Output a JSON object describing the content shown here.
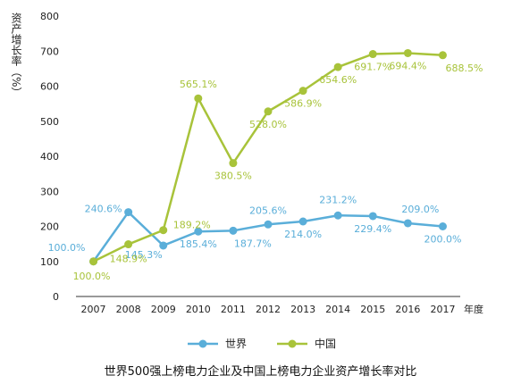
{
  "chart_data": {
    "type": "line",
    "title": "世界500强上榜电力企业及中国上榜电力企业资产增长率对比",
    "ylabel": "资产增长率（%）",
    "xlabel": "年度",
    "ylim": [
      0,
      800
    ],
    "yticks": [
      0,
      100,
      200,
      300,
      400,
      500,
      600,
      700,
      800
    ],
    "grid": false,
    "legend_position": "bottom-center",
    "categories": [
      "2007",
      "2008",
      "2009",
      "2010",
      "2011",
      "2012",
      "2013",
      "2014",
      "2015",
      "2016",
      "2017"
    ],
    "series": [
      {
        "name": "世界",
        "color": "#5aaed9",
        "values": [
          100.0,
          240.6,
          145.3,
          185.4,
          187.7,
          205.6,
          214.0,
          231.2,
          229.4,
          209.0,
          200.0
        ],
        "labels": [
          "100.0%",
          "240.6%",
          "145.3%",
          "185.4%",
          "187.7%",
          "205.6%",
          "214.0%",
          "231.2%",
          "229.4%",
          "209.0%",
          "200.0%"
        ]
      },
      {
        "name": "中国",
        "color": "#a8c33a",
        "values": [
          100.0,
          148.9,
          189.2,
          565.1,
          380.5,
          528.0,
          586.9,
          654.6,
          691.7,
          694.4,
          688.5
        ],
        "labels": [
          "100.0%",
          "148.9%",
          "189.2%",
          "565.1%",
          "380.5%",
          "528.0%",
          "586.9%",
          "654.6%",
          "691.7%",
          "694.4%",
          "688.5%"
        ]
      }
    ]
  }
}
